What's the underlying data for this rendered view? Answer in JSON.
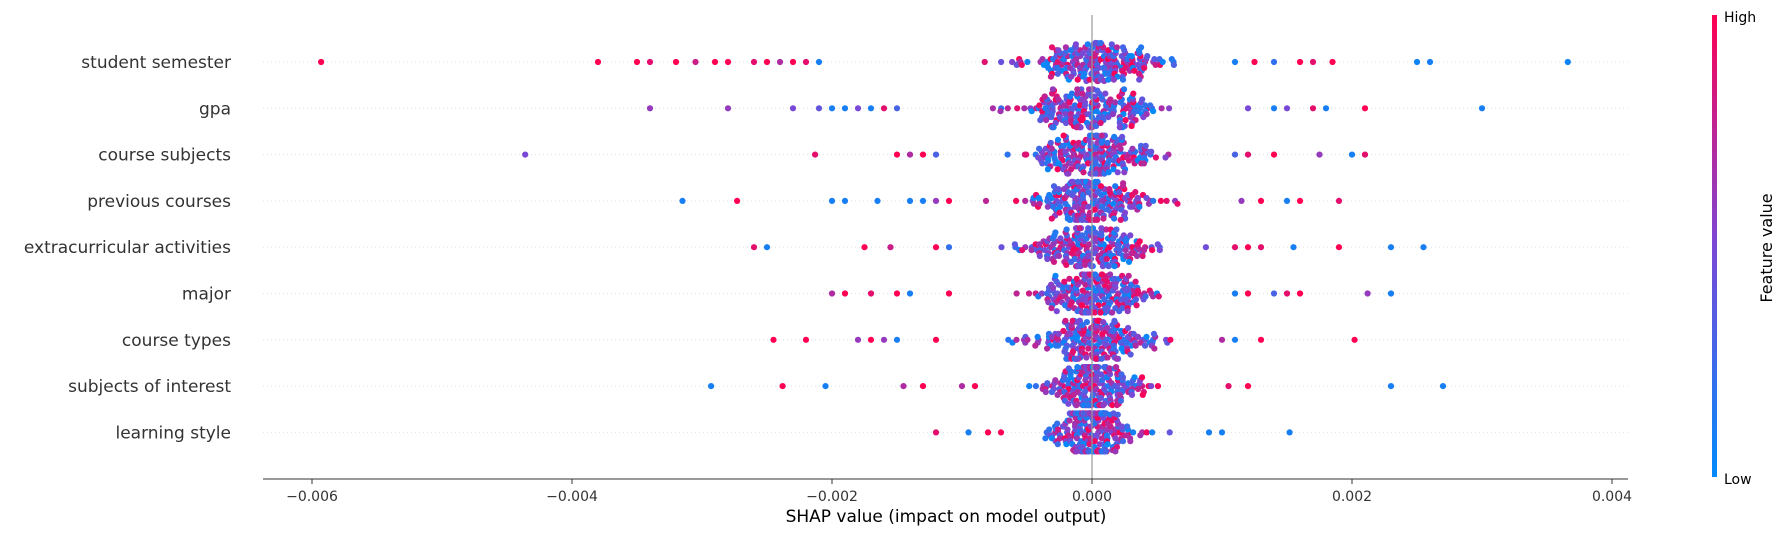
{
  "chart_data": {
    "type": "scatter",
    "subtype": "shap-beeswarm-summary",
    "xlabel": "SHAP value (impact on model output)",
    "ylabel": "",
    "xlim": [
      -0.0064,
      0.0041
    ],
    "xticks": [
      -0.006,
      -0.004,
      -0.002,
      0.0,
      0.002,
      0.004
    ],
    "xtick_labels": [
      "−0.006",
      "−0.004",
      "−0.002",
      "0.000",
      "0.002",
      "0.004"
    ],
    "grid": false,
    "zero_line": true,
    "colorbar": {
      "title": "Feature value",
      "high_label": "High",
      "low_label": "Low",
      "colors": [
        "#008bfb",
        "#7a48d6",
        "#ff0052"
      ]
    },
    "features": [
      {
        "name": "student semester",
        "spread": 0.00033,
        "outliers": [
          [
            -0.00593,
            1
          ],
          [
            -0.0038,
            1
          ],
          [
            -0.0035,
            1
          ],
          [
            -0.0034,
            0.9
          ],
          [
            -0.0032,
            1
          ],
          [
            -0.00305,
            0.8
          ],
          [
            -0.0029,
            1
          ],
          [
            -0.0028,
            1
          ],
          [
            -0.0026,
            0.9
          ],
          [
            -0.0025,
            1
          ],
          [
            -0.0024,
            0.7
          ],
          [
            -0.0023,
            1
          ],
          [
            -0.0022,
            0.9
          ],
          [
            -0.0021,
            0.1
          ],
          [
            0.0011,
            0.1
          ],
          [
            0.00125,
            1
          ],
          [
            0.0014,
            0.2
          ],
          [
            0.0016,
            1
          ],
          [
            0.0017,
            0.9
          ],
          [
            0.00185,
            1
          ],
          [
            0.0025,
            0.05
          ],
          [
            0.0026,
            0.1
          ],
          [
            0.00366,
            0.05
          ]
        ]
      },
      {
        "name": "gpa",
        "spread": 0.00036,
        "outliers": [
          [
            -0.0034,
            0.6
          ],
          [
            -0.0028,
            0.6
          ],
          [
            -0.0023,
            0.5
          ],
          [
            -0.0021,
            0.4
          ],
          [
            -0.002,
            0.1
          ],
          [
            -0.0019,
            0.1
          ],
          [
            -0.0018,
            0.5
          ],
          [
            -0.0017,
            0.1
          ],
          [
            -0.0016,
            0.9
          ],
          [
            -0.0015,
            0.3
          ],
          [
            0.0012,
            0.5
          ],
          [
            0.0014,
            0.1
          ],
          [
            0.0015,
            0.5
          ],
          [
            0.0017,
            0.9
          ],
          [
            0.0018,
            0.1
          ],
          [
            0.0021,
            1
          ],
          [
            0.003,
            0.1
          ]
        ]
      },
      {
        "name": "course subjects",
        "spread": 0.00032,
        "outliers": [
          [
            -0.00436,
            0.5
          ],
          [
            -0.00213,
            0.9
          ],
          [
            -0.0015,
            1
          ],
          [
            -0.0014,
            0.7
          ],
          [
            -0.0013,
            1
          ],
          [
            -0.0012,
            0.3
          ],
          [
            0.0011,
            0.3
          ],
          [
            0.0012,
            0.9
          ],
          [
            0.0014,
            1
          ],
          [
            0.00175,
            0.6
          ],
          [
            0.002,
            0.1
          ],
          [
            0.0021,
            0.9
          ]
        ]
      },
      {
        "name": "previous courses",
        "spread": 0.00029,
        "outliers": [
          [
            -0.00315,
            0.1
          ],
          [
            -0.00273,
            1
          ],
          [
            -0.002,
            0.1
          ],
          [
            -0.0019,
            0.1
          ],
          [
            -0.00165,
            0.1
          ],
          [
            -0.0014,
            0.1
          ],
          [
            -0.0013,
            0.1
          ],
          [
            -0.0012,
            0.6
          ],
          [
            -0.0011,
            1
          ],
          [
            0.00115,
            0.6
          ],
          [
            0.0013,
            1
          ],
          [
            0.0015,
            0.1
          ],
          [
            0.0016,
            1
          ],
          [
            0.0019,
            0.9
          ]
        ]
      },
      {
        "name": "extracurricular activities",
        "spread": 0.0003,
        "outliers": [
          [
            -0.0026,
            0.9
          ],
          [
            -0.0025,
            0.1
          ],
          [
            -0.00175,
            1
          ],
          [
            -0.00155,
            0.8
          ],
          [
            -0.0012,
            1
          ],
          [
            -0.0011,
            0.2
          ],
          [
            0.0011,
            0.9
          ],
          [
            0.0012,
            1
          ],
          [
            0.0013,
            0.9
          ],
          [
            0.00155,
            0.1
          ],
          [
            0.0019,
            1
          ],
          [
            0.0023,
            0.1
          ],
          [
            0.00255,
            0.1
          ]
        ]
      },
      {
        "name": "major",
        "spread": 0.00028,
        "outliers": [
          [
            -0.002,
            0.7
          ],
          [
            -0.0019,
            1
          ],
          [
            -0.0017,
            0.9
          ],
          [
            -0.0015,
            1
          ],
          [
            -0.0014,
            0.1
          ],
          [
            -0.0011,
            1
          ],
          [
            0.0011,
            0.1
          ],
          [
            0.0012,
            1
          ],
          [
            0.0014,
            0.3
          ],
          [
            0.0015,
            0.9
          ],
          [
            0.0016,
            1
          ],
          [
            0.00212,
            0.6
          ],
          [
            0.0023,
            0.1
          ]
        ]
      },
      {
        "name": "course types",
        "spread": 0.0003,
        "outliers": [
          [
            -0.00245,
            1
          ],
          [
            -0.0022,
            1
          ],
          [
            -0.0018,
            0.6
          ],
          [
            -0.0017,
            1
          ],
          [
            -0.0016,
            0.6
          ],
          [
            -0.0015,
            0.1
          ],
          [
            -0.0012,
            1
          ],
          [
            0.001,
            0.7
          ],
          [
            0.0011,
            0.1
          ],
          [
            0.0013,
            1
          ],
          [
            0.00202,
            1
          ]
        ]
      },
      {
        "name": "subjects of interest",
        "spread": 0.00026,
        "outliers": [
          [
            -0.00293,
            0.1
          ],
          [
            -0.00238,
            1
          ],
          [
            -0.00205,
            0.1
          ],
          [
            -0.00145,
            0.7
          ],
          [
            -0.0013,
            1
          ],
          [
            -0.001,
            0.7
          ],
          [
            -0.0009,
            1
          ],
          [
            0.00105,
            0.9
          ],
          [
            0.0012,
            1
          ],
          [
            0.0023,
            0.1
          ],
          [
            0.0027,
            0.1
          ]
        ]
      },
      {
        "name": "learning style",
        "spread": 0.00024,
        "outliers": [
          [
            -0.0012,
            0.9
          ],
          [
            -0.00095,
            0.1
          ],
          [
            -0.0008,
            1
          ],
          [
            -0.0007,
            1
          ],
          [
            0.0009,
            0.1
          ],
          [
            0.001,
            0.1
          ],
          [
            0.00152,
            0.1
          ]
        ]
      }
    ]
  }
}
